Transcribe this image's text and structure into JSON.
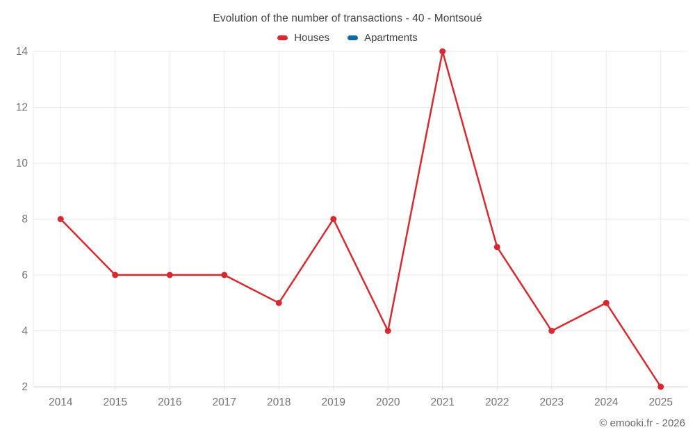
{
  "title": "Evolution of the number of transactions - 40 - Montsoué",
  "footer": "© emooki.fr - 2026",
  "chart_data": {
    "type": "line",
    "title": "Evolution of the number of transactions - 40 - Montsoué",
    "x": [
      "2014",
      "2015",
      "2016",
      "2017",
      "2018",
      "2019",
      "2020",
      "2021",
      "2022",
      "2023",
      "2024",
      "2025"
    ],
    "series": [
      {
        "name": "Houses",
        "color": "#d7292f",
        "values": [
          8,
          6,
          6,
          6,
          5,
          8,
          4,
          14,
          7,
          4,
          5,
          2
        ]
      },
      {
        "name": "Apartments",
        "color": "#136ba5",
        "values": []
      }
    ],
    "xlabel": "",
    "ylabel": "",
    "ylim": [
      2,
      14
    ],
    "yticks": [
      2,
      4,
      6,
      8,
      10,
      12,
      14
    ],
    "grid": true,
    "legend_position": "top",
    "colors": {
      "grid_color": "#e8e8e8",
      "axis_color": "#d6d6d6",
      "tick_label_color": "#757575",
      "background": "#ffffff"
    }
  }
}
